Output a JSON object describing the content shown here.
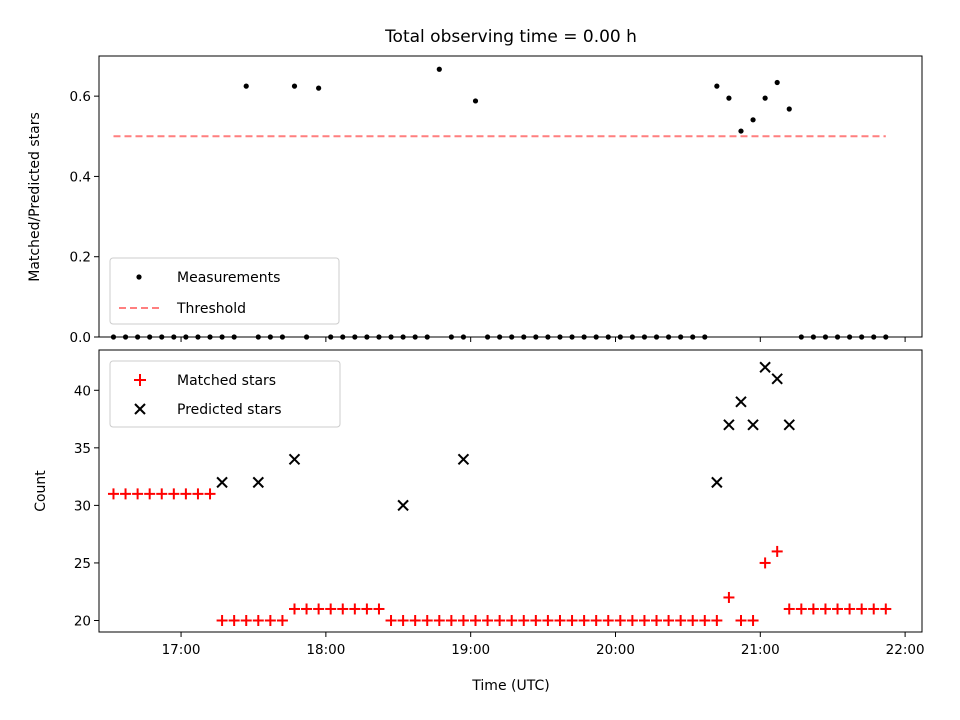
{
  "chart_data": [
    {
      "type": "scatter",
      "title": "Total observing time = 0.00 h",
      "xlabel": "",
      "ylabel": "Matched/Predicted stars",
      "ylim": [
        0,
        0.7
      ],
      "yticks": [
        0.0,
        0.2,
        0.4,
        0.6
      ],
      "ytick_labels": [
        "0.0",
        "0.2",
        "0.4",
        "0.6"
      ],
      "legend_position": "lower-left",
      "grid": false,
      "series": [
        {
          "name": "Measurements",
          "marker": "dot",
          "color": "#000000",
          "x": [
            "16:32",
            "16:37",
            "16:42",
            "16:47",
            "16:52",
            "16:57",
            "17:02",
            "17:07",
            "17:12",
            "17:17",
            "17:22",
            "17:27",
            "17:32",
            "17:37",
            "17:42",
            "17:47",
            "17:52",
            "17:57",
            "18:02",
            "18:07",
            "18:12",
            "18:17",
            "18:22",
            "18:27",
            "18:32",
            "18:37",
            "18:42",
            "18:47",
            "18:52",
            "18:57",
            "19:02",
            "19:07",
            "19:12",
            "19:17",
            "19:22",
            "19:27",
            "19:32",
            "19:37",
            "19:42",
            "19:47",
            "19:52",
            "19:57",
            "20:02",
            "20:07",
            "20:12",
            "20:17",
            "20:22",
            "20:27",
            "20:32",
            "20:37",
            "20:42",
            "20:47",
            "20:52",
            "20:57",
            "21:02",
            "21:07",
            "21:12",
            "21:17",
            "21:22",
            "21:27",
            "21:32",
            "21:37",
            "21:42",
            "21:47",
            "21:52"
          ],
          "y": [
            0,
            0,
            0,
            0,
            0,
            0,
            0,
            0,
            0,
            0,
            0,
            0.625,
            0,
            0,
            0,
            0.625,
            0,
            0.62,
            0,
            0,
            0,
            0,
            0,
            0,
            0,
            0,
            0,
            0.667,
            0,
            0,
            0.588,
            0,
            0,
            0,
            0,
            0,
            0,
            0,
            0,
            0,
            0,
            0,
            0,
            0,
            0,
            0,
            0,
            0,
            0,
            0,
            0.625,
            0.595,
            0.513,
            0.541,
            0.595,
            0.634,
            0.568,
            0,
            0,
            0,
            0,
            0,
            0,
            0,
            0
          ]
        },
        {
          "name": "Threshold",
          "line_style": "dashed",
          "color": "#ff7f7f",
          "x": [
            "16:32",
            "21:52"
          ],
          "y": [
            0.5,
            0.5
          ]
        }
      ]
    },
    {
      "type": "scatter",
      "xlabel": "Time (UTC)",
      "ylabel": "Count",
      "ylim": [
        19,
        43.5
      ],
      "yticks": [
        20,
        25,
        30,
        35,
        40
      ],
      "ytick_labels": [
        "20",
        "25",
        "30",
        "35",
        "40"
      ],
      "xlim": [
        "16:26",
        "22:07"
      ],
      "xticks": [
        "17:00",
        "18:00",
        "19:00",
        "20:00",
        "21:00",
        "22:00"
      ],
      "xtick_labels": [
        "17:00",
        "18:00",
        "19:00",
        "20:00",
        "21:00",
        "22:00"
      ],
      "legend_position": "top-left",
      "grid": false,
      "series": [
        {
          "name": "Matched stars",
          "marker": "plus",
          "color": "#ff0000",
          "x": [
            "16:32",
            "16:37",
            "16:42",
            "16:47",
            "16:52",
            "16:57",
            "17:02",
            "17:07",
            "17:12",
            "17:17",
            "17:22",
            "17:27",
            "17:32",
            "17:37",
            "17:42",
            "17:47",
            "17:52",
            "17:57",
            "18:02",
            "18:07",
            "18:12",
            "18:17",
            "18:22",
            "18:27",
            "18:32",
            "18:37",
            "18:42",
            "18:47",
            "18:52",
            "18:57",
            "19:02",
            "19:07",
            "19:12",
            "19:17",
            "19:22",
            "19:27",
            "19:32",
            "19:37",
            "19:42",
            "19:47",
            "19:52",
            "19:57",
            "20:02",
            "20:07",
            "20:12",
            "20:17",
            "20:22",
            "20:27",
            "20:32",
            "20:37",
            "20:42",
            "20:47",
            "20:52",
            "20:57",
            "21:02",
            "21:07",
            "21:12",
            "21:17",
            "21:22",
            "21:27",
            "21:32",
            "21:37",
            "21:42",
            "21:47",
            "21:52"
          ],
          "y": [
            31,
            31,
            31,
            31,
            31,
            31,
            31,
            31,
            31,
            20,
            20,
            20,
            20,
            20,
            20,
            21,
            21,
            21,
            21,
            21,
            21,
            21,
            21,
            20,
            20,
            20,
            20,
            20,
            20,
            20,
            20,
            20,
            20,
            20,
            20,
            20,
            20,
            20,
            20,
            20,
            20,
            20,
            20,
            20,
            20,
            20,
            20,
            20,
            20,
            20,
            20,
            22,
            20,
            20,
            25,
            26,
            21,
            21,
            21,
            21,
            21,
            21,
            21,
            21,
            21
          ]
        },
        {
          "name": "Predicted stars",
          "marker": "x",
          "color": "#000000",
          "x": [
            "17:17",
            "17:32",
            "17:47",
            "18:32",
            "18:57",
            "20:42",
            "20:47",
            "20:52",
            "20:57",
            "21:02",
            "21:07",
            "21:12"
          ],
          "y": [
            32,
            32,
            34,
            30,
            34,
            32,
            37,
            39,
            37,
            42,
            41,
            37
          ]
        }
      ]
    }
  ]
}
